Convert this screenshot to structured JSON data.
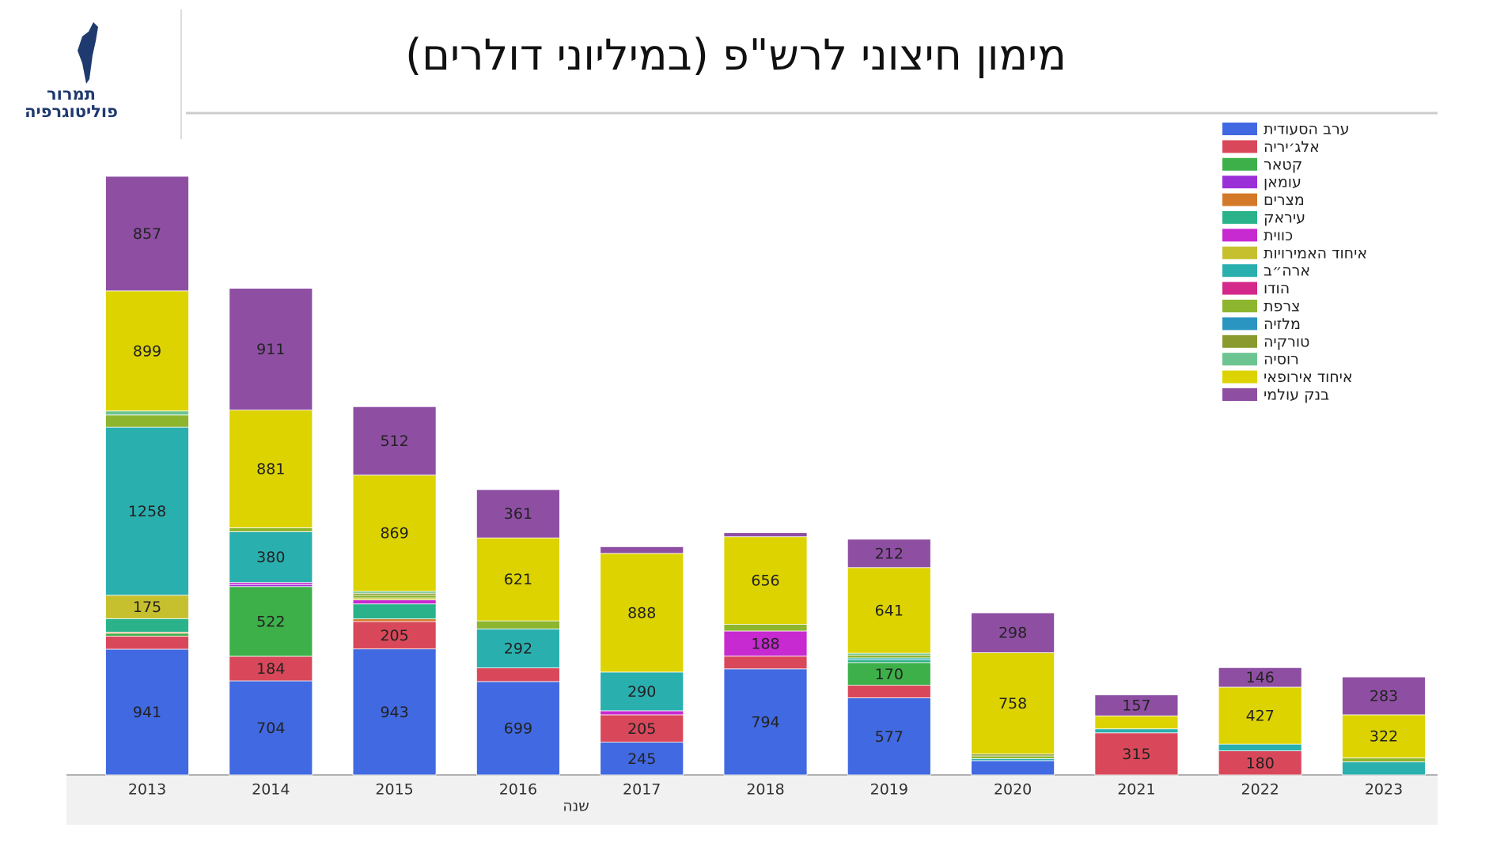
{
  "header": {
    "logo_line1": "תמרור",
    "logo_line2": "פוליטוגרפיה"
  },
  "chart_data": {
    "type": "stacked_bar",
    "title": "מימון חיצוני לרש\"פ (במיליוני דולרים)",
    "x_label": "שנה",
    "categories": [
      "2013",
      "2014",
      "2015",
      "2016",
      "2017",
      "2018",
      "2019",
      "2020",
      "2021",
      "2022",
      "2023"
    ],
    "series": [
      {
        "name": "ערב הסעודית",
        "color": "#4169e1",
        "values": [
          941,
          704,
          943,
          699,
          245,
          794,
          577,
          107,
          0,
          0,
          0
        ]
      },
      {
        "name": "אלג׳יריה",
        "color": "#d9485a",
        "values": [
          98,
          184,
          205,
          102,
          205,
          95,
          94,
          0,
          315,
          180,
          0
        ]
      },
      {
        "name": "קטאר",
        "color": "#3db04a",
        "values": [
          20,
          522,
          0,
          0,
          0,
          0,
          170,
          0,
          0,
          0,
          0
        ]
      },
      {
        "name": "עומאן",
        "color": "#9b30d9",
        "values": [
          0,
          15,
          0,
          0,
          0,
          0,
          0,
          0,
          0,
          0,
          0
        ]
      },
      {
        "name": "מצרים",
        "color": "#d4782a",
        "values": [
          10,
          0,
          20,
          0,
          0,
          0,
          0,
          0,
          0,
          0,
          0
        ]
      },
      {
        "name": "עיראק",
        "color": "#2ab38a",
        "values": [
          101,
          0,
          112,
          0,
          0,
          0,
          20,
          0,
          0,
          0,
          0
        ]
      },
      {
        "name": "כווית",
        "color": "#c72ad0",
        "values": [
          0,
          15,
          30,
          0,
          30,
          188,
          0,
          0,
          0,
          0,
          0
        ]
      },
      {
        "name": "איחוד האמירויות",
        "color": "#c7c02e",
        "values": [
          175,
          0,
          15,
          0,
          0,
          0,
          0,
          0,
          0,
          0,
          0
        ]
      },
      {
        "name": "ארה״ב",
        "color": "#2aafaf",
        "values": [
          1258,
          380,
          0,
          292,
          290,
          0,
          15,
          15,
          30,
          50,
          98
        ]
      },
      {
        "name": "הודו",
        "color": "#d4288a",
        "values": [
          0,
          0,
          0,
          0,
          0,
          0,
          0,
          0,
          0,
          0,
          0
        ]
      },
      {
        "name": "צרפת",
        "color": "#8db52e",
        "values": [
          91,
          30,
          20,
          60,
          0,
          50,
          20,
          20,
          0,
          0,
          30
        ]
      },
      {
        "name": "מלזיה",
        "color": "#2a95c0",
        "values": [
          0,
          0,
          0,
          0,
          0,
          0,
          0,
          0,
          0,
          0,
          0
        ]
      },
      {
        "name": "טורקיה",
        "color": "#8a9a2e",
        "values": [
          0,
          0,
          15,
          0,
          0,
          0,
          0,
          15,
          0,
          0,
          0
        ]
      },
      {
        "name": "רוסיה",
        "color": "#6cc490",
        "values": [
          30,
          0,
          15,
          0,
          0,
          0,
          15,
          0,
          0,
          0,
          0
        ]
      },
      {
        "name": "איחוד אירופאי",
        "color": "#ddd300",
        "values": [
          899,
          881,
          869,
          621,
          888,
          656,
          641,
          758,
          97,
          427,
          322
        ]
      },
      {
        "name": "בנק עולמי",
        "color": "#8e4fa3",
        "values": [
          857,
          911,
          512,
          361,
          50,
          30,
          212,
          298,
          157,
          146,
          283
        ]
      }
    ]
  }
}
